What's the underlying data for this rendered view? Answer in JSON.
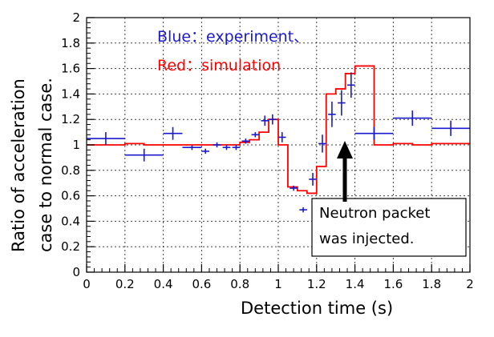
{
  "chart_data": {
    "type": "scatter",
    "title": "",
    "xlabel": "Detection time (s)",
    "ylabel": [
      "Ratio of acceleration",
      "case to normal case."
    ],
    "xlim": [
      0,
      2
    ],
    "ylim": [
      0,
      2
    ],
    "x_ticks": [
      0,
      0.2,
      0.4,
      0.6,
      0.8,
      1,
      1.2,
      1.4,
      1.6,
      1.8,
      2
    ],
    "y_ticks": [
      0,
      0.2,
      0.4,
      0.6,
      0.8,
      1,
      1.2,
      1.4,
      1.6,
      1.8,
      2
    ],
    "x_tick_labels": [
      "0",
      "0.2",
      "0.4",
      "0.6",
      "0.8",
      "1",
      "1.2",
      "1.4",
      "1.6",
      "1.8",
      "2"
    ],
    "y_tick_labels": [
      "0",
      "0.2",
      "0.4",
      "0.6",
      "0.8",
      "1",
      "1.2",
      "1.4",
      "1.6",
      "1.8",
      "2"
    ],
    "grid": true,
    "series": [
      {
        "name": "Blue : experiment",
        "color": "#1a1acc",
        "style": "points-with-error-bars",
        "points": [
          {
            "x": 0.1,
            "y": 1.05,
            "xerr": 0.1,
            "yerr": 0.05
          },
          {
            "x": 0.3,
            "y": 0.92,
            "xerr": 0.1,
            "yerr": 0.05
          },
          {
            "x": 0.45,
            "y": 1.09,
            "xerr": 0.05,
            "yerr": 0.05
          },
          {
            "x": 0.55,
            "y": 0.98,
            "xerr": 0.05,
            "yerr": 0.02
          },
          {
            "x": 0.62,
            "y": 0.95,
            "xerr": 0.02,
            "yerr": 0.02
          },
          {
            "x": 0.68,
            "y": 1.0,
            "xerr": 0.02,
            "yerr": 0.02
          },
          {
            "x": 0.73,
            "y": 0.98,
            "xerr": 0.02,
            "yerr": 0.02
          },
          {
            "x": 0.78,
            "y": 0.98,
            "xerr": 0.02,
            "yerr": 0.02
          },
          {
            "x": 0.83,
            "y": 1.03,
            "xerr": 0.02,
            "yerr": 0.02
          },
          {
            "x": 0.88,
            "y": 1.08,
            "xerr": 0.02,
            "yerr": 0.02
          },
          {
            "x": 0.93,
            "y": 1.19,
            "xerr": 0.02,
            "yerr": 0.04
          },
          {
            "x": 0.97,
            "y": 1.2,
            "xerr": 0.02,
            "yerr": 0.04
          },
          {
            "x": 1.02,
            "y": 1.06,
            "xerr": 0.02,
            "yerr": 0.04
          },
          {
            "x": 1.08,
            "y": 0.66,
            "xerr": 0.02,
            "yerr": 0.02
          },
          {
            "x": 1.13,
            "y": 0.49,
            "xerr": 0.02,
            "yerr": 0.02
          },
          {
            "x": 1.18,
            "y": 0.73,
            "xerr": 0.02,
            "yerr": 0.05
          },
          {
            "x": 1.23,
            "y": 1.01,
            "xerr": 0.02,
            "yerr": 0.07
          },
          {
            "x": 1.28,
            "y": 1.24,
            "xerr": 0.02,
            "yerr": 0.1
          },
          {
            "x": 1.33,
            "y": 1.33,
            "xerr": 0.02,
            "yerr": 0.1
          },
          {
            "x": 1.38,
            "y": 1.47,
            "xerr": 0.02,
            "yerr": 0.1
          },
          {
            "x": 1.5,
            "y": 1.09,
            "xerr": 0.1,
            "yerr": 0.05
          },
          {
            "x": 1.7,
            "y": 1.21,
            "xerr": 0.1,
            "yerr": 0.06
          },
          {
            "x": 1.9,
            "y": 1.13,
            "xerr": 0.1,
            "yerr": 0.06
          }
        ]
      },
      {
        "name": "Red : simulation",
        "color": "#ff0000",
        "style": "step-histogram",
        "bin_edges": [
          0,
          0.1,
          0.2,
          0.3,
          0.4,
          0.5,
          0.55,
          0.6,
          0.65,
          0.7,
          0.75,
          0.8,
          0.85,
          0.9,
          0.95,
          1.0,
          1.05,
          1.1,
          1.15,
          1.2,
          1.25,
          1.3,
          1.35,
          1.4,
          1.5,
          1.6,
          1.7,
          1.8,
          1.9,
          2.0
        ],
        "values": [
          1.0,
          1.0,
          1.01,
          1.0,
          1.0,
          1.0,
          1.0,
          1.0,
          1.0,
          1.0,
          1.0,
          1.02,
          1.04,
          1.1,
          1.2,
          1.0,
          0.67,
          0.64,
          0.62,
          0.83,
          1.4,
          1.44,
          1.56,
          1.62,
          1.0,
          1.01,
          1.0,
          1.01,
          1.01
        ]
      }
    ],
    "annotations": {
      "legend_blue": "Blue：experiment、",
      "legend_red": "Red：simulation",
      "callout": [
        "Neutron packet",
        "was injected."
      ]
    }
  }
}
